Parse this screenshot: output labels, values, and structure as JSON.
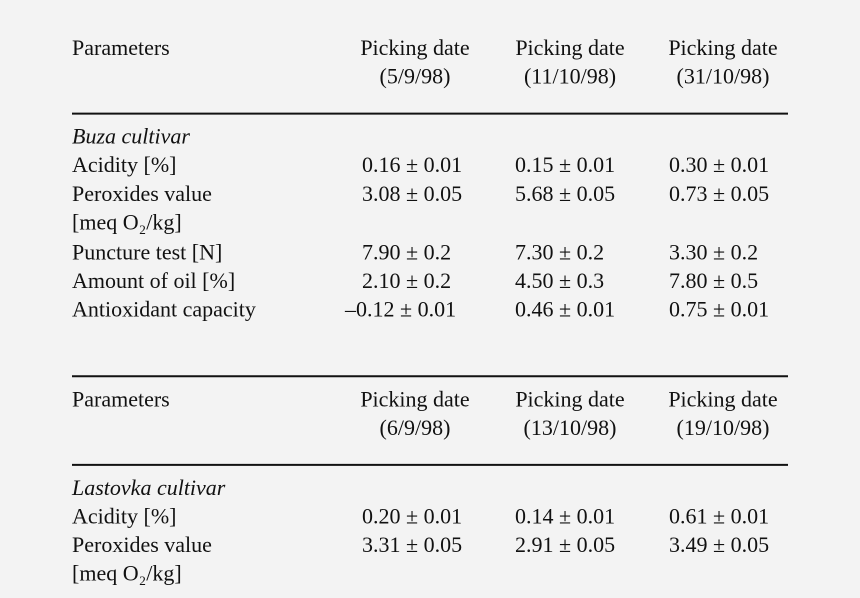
{
  "sections": [
    {
      "header": {
        "label": "Parameters",
        "columns": [
          [
            "Picking date",
            "(5/9/98)"
          ],
          [
            "Picking date",
            "(11/10/98)"
          ],
          [
            "Picking date",
            "(31/10/98)"
          ]
        ]
      },
      "cultivar": "Buza cultivar",
      "rows": [
        {
          "label": [
            "Acidity [%]"
          ],
          "values": [
            "0.16 ± 0.01",
            "0.15 ± 0.01",
            "0.30 ± 0.01"
          ]
        },
        {
          "label": [
            "Peroxides value",
            "[meq O₂/kg]"
          ],
          "values": [
            "3.08 ± 0.05",
            "5.68 ± 0.05",
            "0.73 ± 0.05"
          ]
        },
        {
          "label": [
            "Puncture test [N]"
          ],
          "values": [
            "7.90 ± 0.2",
            "7.30 ± 0.2",
            "3.30 ± 0.2"
          ]
        },
        {
          "label": [
            "Amount of oil [%]"
          ],
          "values": [
            "2.10 ± 0.2",
            "4.50 ± 0.3",
            "7.80 ± 0.5"
          ]
        },
        {
          "label": [
            "Antioxidant capacity"
          ],
          "values": [
            "–0.12 ± 0.01",
            "0.46 ± 0.01",
            "0.75 ± 0.01"
          ]
        }
      ]
    },
    {
      "header": {
        "label": "Parameters",
        "columns": [
          [
            "Picking date",
            "(6/9/98)"
          ],
          [
            "Picking date",
            "(13/10/98)"
          ],
          [
            "Picking date",
            "(19/10/98)"
          ]
        ]
      },
      "cultivar": "Lastovka cultivar",
      "rows": [
        {
          "label": [
            "Acidity [%]"
          ],
          "values": [
            "0.20 ± 0.01",
            "0.14 ± 0.01",
            "0.61 ± 0.01"
          ]
        },
        {
          "label": [
            "Peroxides value",
            "[meq O₂/kg]"
          ],
          "values": [
            "3.31 ± 0.05",
            "2.91 ± 0.05",
            "3.49 ± 0.05"
          ]
        }
      ]
    }
  ]
}
